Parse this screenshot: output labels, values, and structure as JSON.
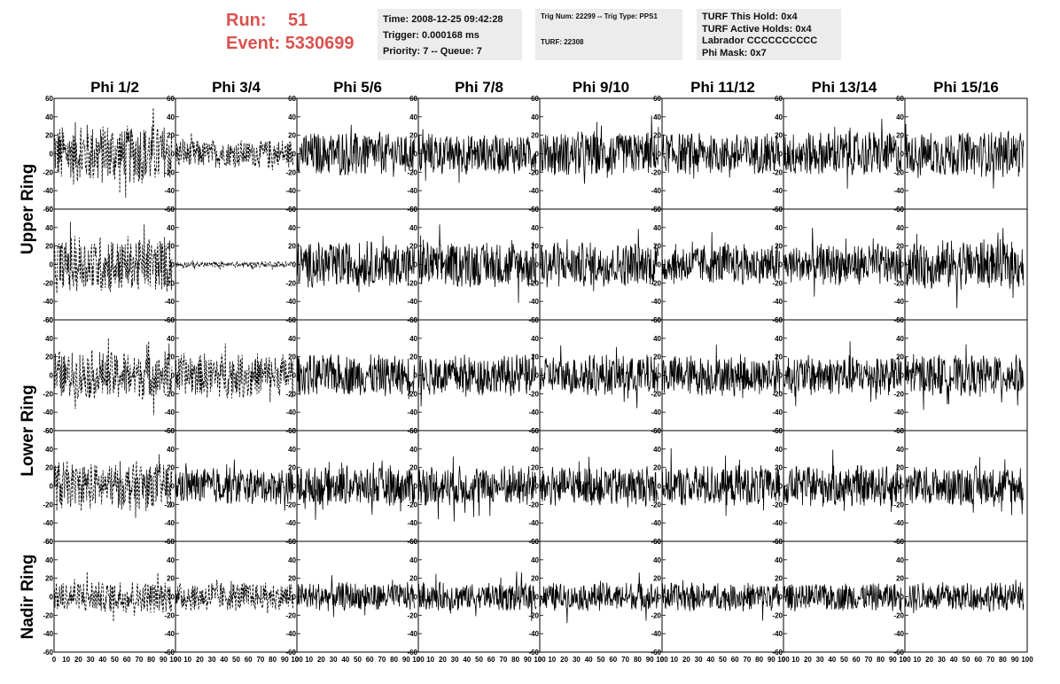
{
  "run_label": "Run:",
  "run_value": "51",
  "event_label": "Event:",
  "event_value": "5330699",
  "info1": {
    "time": "Time: 2008-12-25 09:42:28",
    "trigger": "Trigger: 0.000168 ms",
    "priority": "Priority: 7 -- Queue: 7"
  },
  "info2": {
    "trig": "Trig Num: 22299 -- Trig Type: PPS1",
    "turf": "TURF: 22308"
  },
  "info3": {
    "hold": "TURF This Hold: 0x4",
    "active": "TURF Active Holds: 0x4",
    "labrador": "Labrador CCCCCCCCCC",
    "phimask": "Phi Mask: 0x7"
  },
  "columns": [
    "Phi 1/2",
    "Phi 3/4",
    "Phi 5/6",
    "Phi 7/8",
    "Phi 9/10",
    "Phi 11/12",
    "Phi 13/14",
    "Phi 15/16"
  ],
  "rings": [
    "Upper Ring",
    "Lower Ring",
    "Nadir Ring"
  ],
  "y_ticks": [
    "60",
    "40",
    "20",
    "0",
    "-20",
    "-40",
    "-60"
  ],
  "x_ticks": [
    "0",
    "10",
    "20",
    "30",
    "40",
    "50",
    "60",
    "70",
    "80",
    "90",
    "100"
  ],
  "colors": {
    "run_text": "#d9534f",
    "info_bg": "#ececec",
    "trace": "#000000"
  },
  "chart_data": {
    "type": "line",
    "xlim": [
      0,
      100
    ],
    "ylim": [
      -60,
      60
    ],
    "layout_rows": 5,
    "layout_cols": 8,
    "dashed_panels": [
      [
        0,
        0
      ],
      [
        0,
        1
      ],
      [
        1,
        0
      ],
      [
        1,
        1
      ],
      [
        2,
        0
      ],
      [
        2,
        1
      ],
      [
        3,
        0
      ],
      [
        4,
        0
      ],
      [
        4,
        1
      ]
    ],
    "amplitudes": [
      [
        30,
        14,
        22,
        20,
        22,
        20,
        22,
        22
      ],
      [
        28,
        3,
        22,
        22,
        22,
        20,
        20,
        24
      ],
      [
        24,
        22,
        20,
        20,
        20,
        20,
        20,
        20
      ],
      [
        24,
        18,
        20,
        20,
        20,
        20,
        20,
        20
      ],
      [
        16,
        14,
        14,
        14,
        14,
        14,
        14,
        14
      ]
    ]
  }
}
